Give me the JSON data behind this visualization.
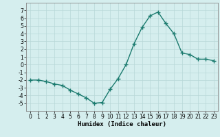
{
  "x": [
    0,
    1,
    2,
    3,
    4,
    5,
    6,
    7,
    8,
    9,
    10,
    11,
    12,
    13,
    14,
    15,
    16,
    17,
    18,
    19,
    20,
    21,
    22,
    23
  ],
  "y": [
    -2,
    -2,
    -2.2,
    -2.5,
    -2.7,
    -3.3,
    -3.8,
    -4.3,
    -5,
    -4.9,
    -3.2,
    -1.8,
    0,
    2.7,
    4.8,
    6.3,
    6.8,
    5.3,
    4,
    1.5,
    1.3,
    0.7,
    0.7,
    0.5
  ],
  "line_color": "#1a7a6e",
  "marker": "+",
  "marker_size": 4,
  "bg_color": "#d5eeee",
  "grid_color": "#b8d8d8",
  "xlabel": "Humidex (Indice chaleur)",
  "xlabel_fontsize": 6.5,
  "xlim": [
    -0.5,
    23.5
  ],
  "ylim": [
    -6,
    8
  ],
  "yticks": [
    -5,
    -4,
    -3,
    -2,
    -1,
    0,
    1,
    2,
    3,
    4,
    5,
    6,
    7
  ],
  "xticks": [
    0,
    1,
    2,
    3,
    4,
    5,
    6,
    7,
    8,
    9,
    10,
    11,
    12,
    13,
    14,
    15,
    16,
    17,
    18,
    19,
    20,
    21,
    22,
    23
  ],
  "tick_fontsize": 5.5,
  "line_width": 1.0
}
